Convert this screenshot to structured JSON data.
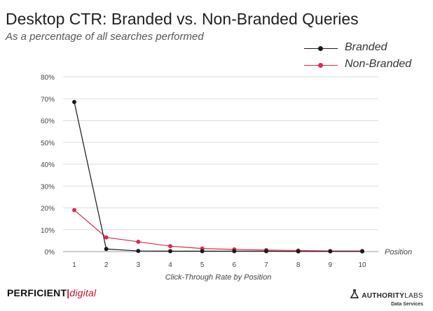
{
  "header": {
    "title": "Desktop CTR: Branded vs. Non-Branded Queries",
    "subtitle": "As a percentage of all searches performed"
  },
  "legend": [
    {
      "label": "Branded",
      "color": "#1a1a1a"
    },
    {
      "label": "Non-Branded",
      "color": "#e0284f"
    }
  ],
  "footer": {
    "left_brand_a": "PERFICIENT",
    "left_brand_sep": "|",
    "left_brand_b": "digital",
    "right_brand_a": "AUTHORITY",
    "right_brand_b": "LABS",
    "right_sub": "Data Services"
  },
  "chart_data": {
    "type": "line",
    "x": [
      1,
      2,
      3,
      4,
      5,
      6,
      7,
      8,
      9,
      10
    ],
    "xlabel": "Click-Through Rate by Position",
    "x_axis_end_label": "Position",
    "ylabel": "",
    "ylim": [
      0,
      80
    ],
    "yticks": [
      "0%",
      "10%",
      "20%",
      "30%",
      "40%",
      "50%",
      "60%",
      "70%",
      "80%"
    ],
    "grid": true,
    "legend_position": "top-right",
    "series": [
      {
        "name": "Branded",
        "color": "#1a1a1a",
        "values": [
          68.5,
          1.2,
          0.3,
          0.2,
          0.2,
          0.2,
          0.2,
          0.1,
          0.1,
          0.1
        ]
      },
      {
        "name": "Non-Branded",
        "color": "#e0284f",
        "values": [
          19.0,
          6.5,
          4.5,
          2.5,
          1.4,
          1.0,
          0.7,
          0.5,
          0.3,
          0.3
        ]
      }
    ]
  }
}
